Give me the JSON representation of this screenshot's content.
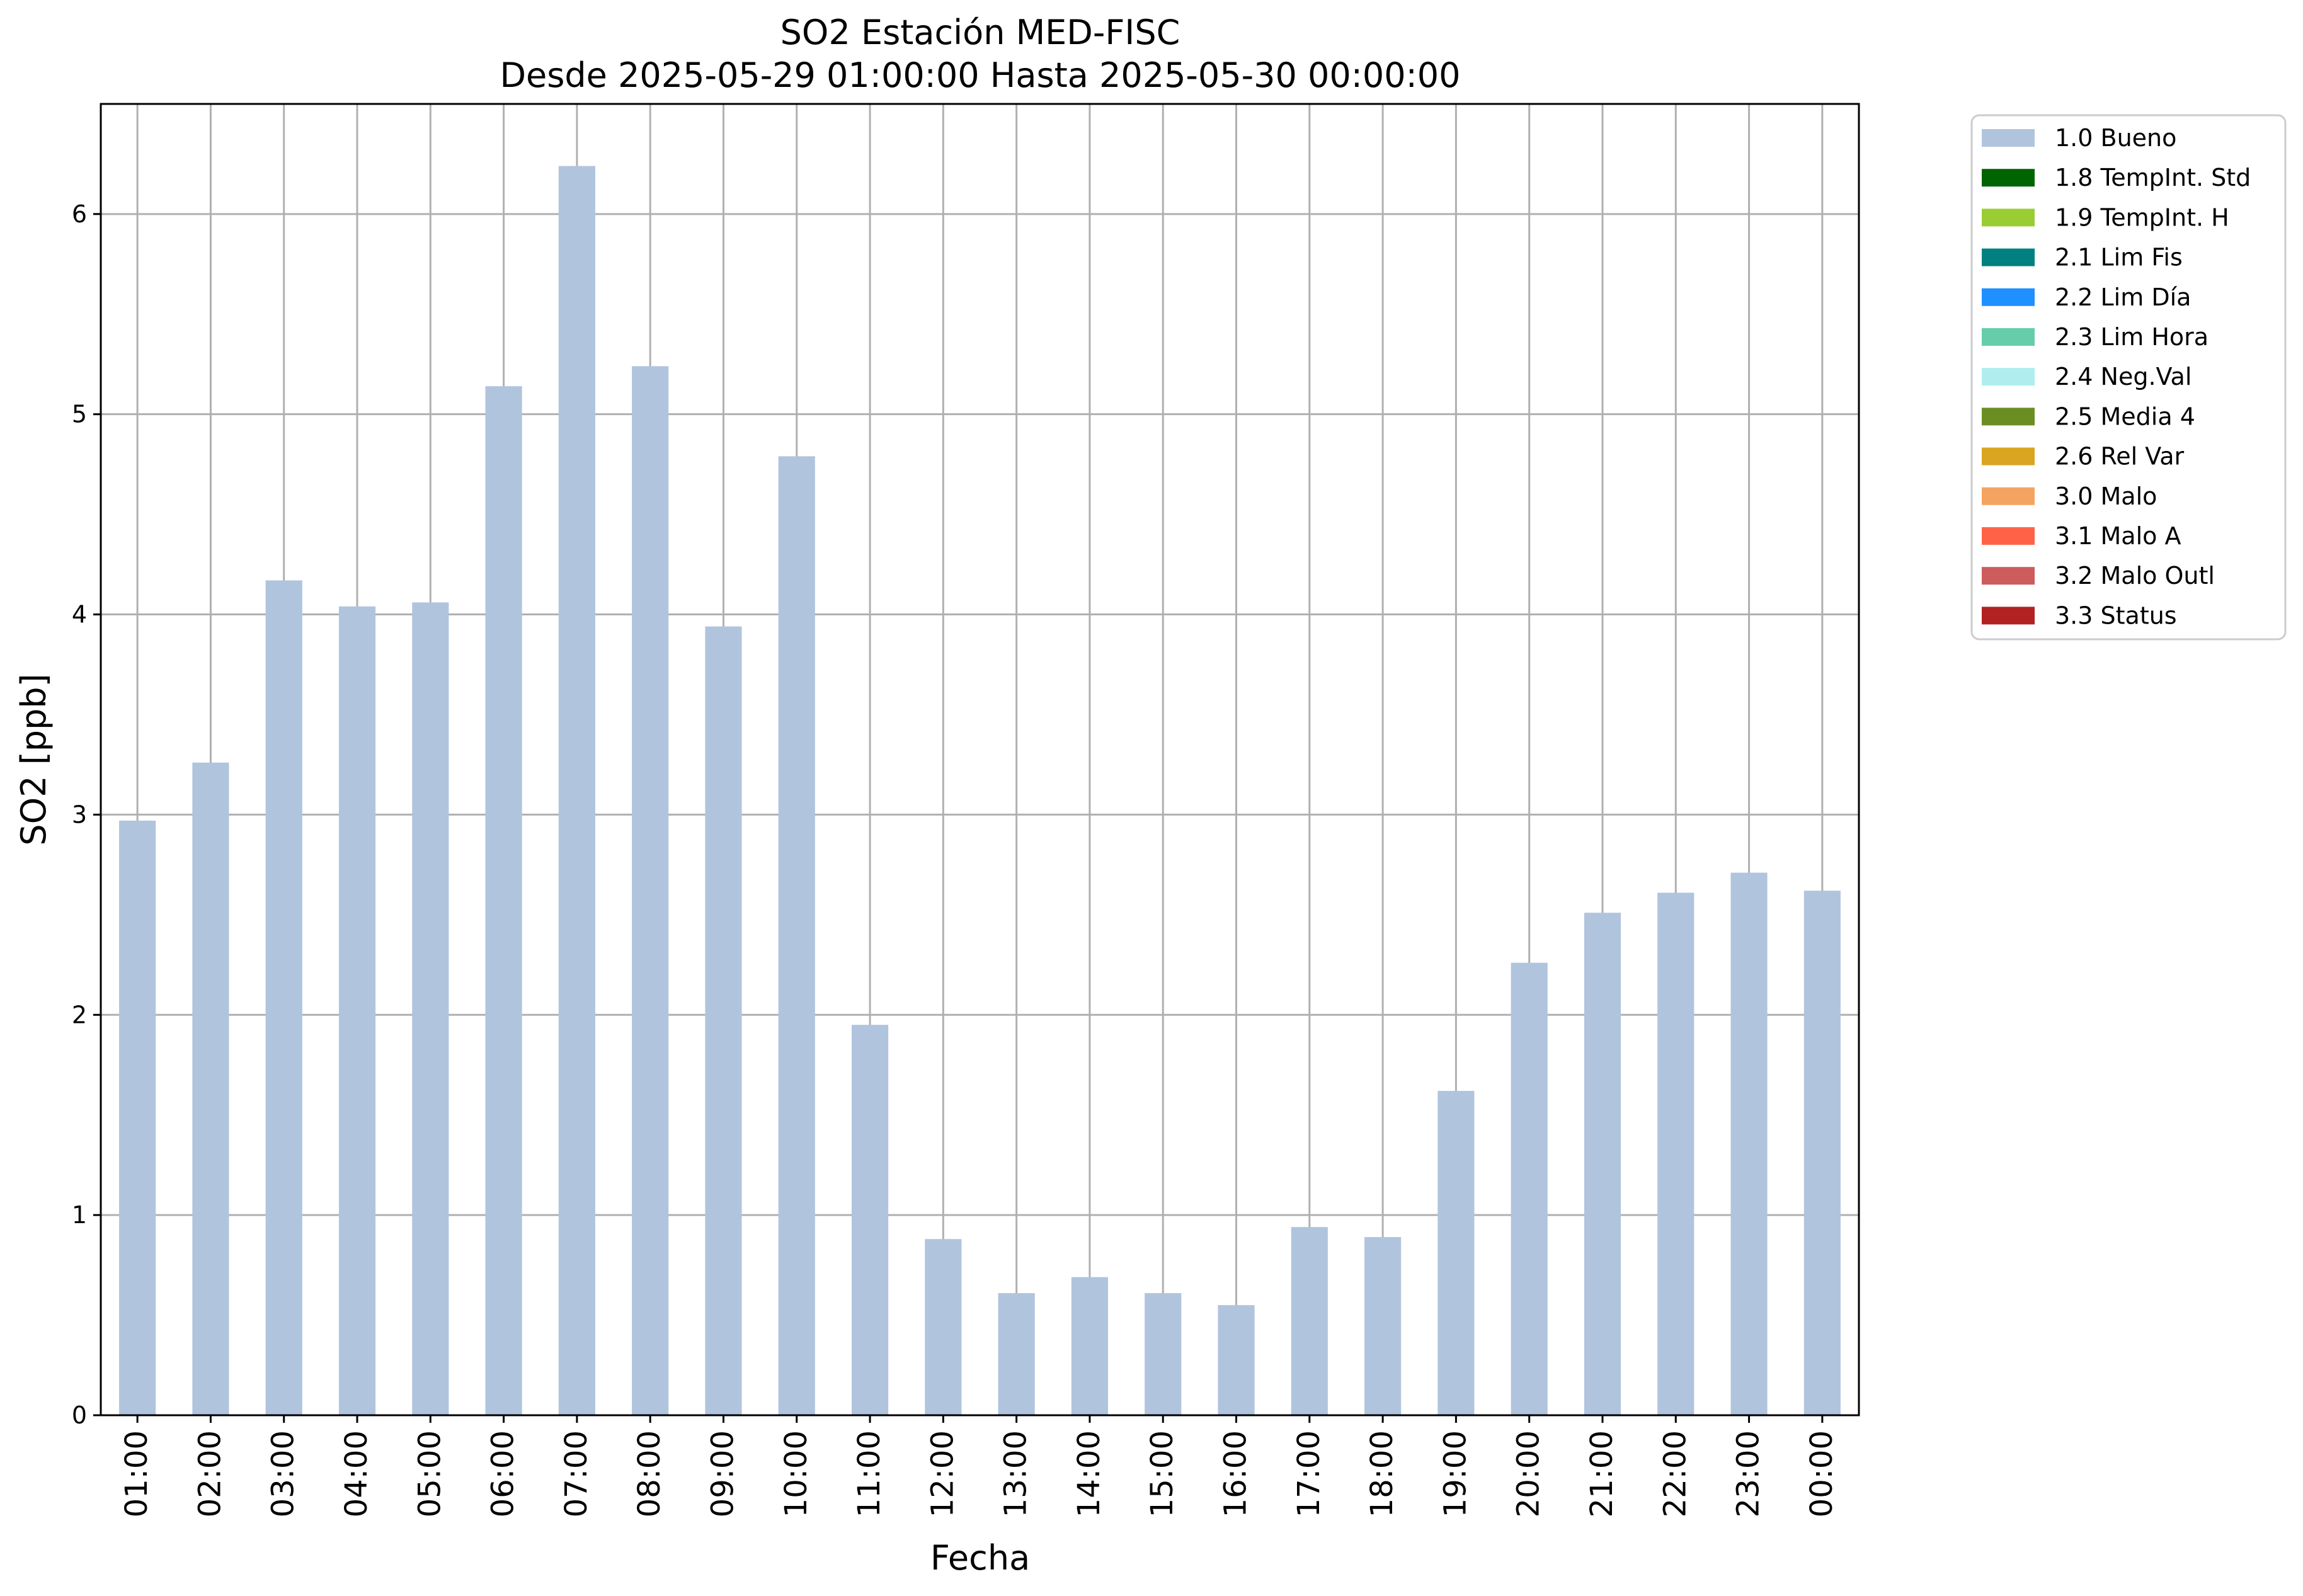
{
  "chart_data": {
    "type": "bar",
    "title": "SO2 Estación MED-FISC",
    "subtitle": "Desde 2025-05-29 01:00:00 Hasta 2025-05-30 00:00:00",
    "xlabel": "Fecha",
    "ylabel": "SO2 [ppb]",
    "ylim": [
      0,
      6.55
    ],
    "yticks": [
      0,
      1,
      2,
      3,
      4,
      5,
      6
    ],
    "grid": true,
    "legend_position": "outside-top-right",
    "categories": [
      "01:00",
      "02:00",
      "03:00",
      "04:00",
      "05:00",
      "06:00",
      "07:00",
      "08:00",
      "09:00",
      "10:00",
      "11:00",
      "12:00",
      "13:00",
      "14:00",
      "15:00",
      "16:00",
      "17:00",
      "18:00",
      "19:00",
      "20:00",
      "21:00",
      "22:00",
      "23:00",
      "00:00"
    ],
    "series": [
      {
        "name": "1.0 Bueno",
        "color": "#b0c4de",
        "values": [
          2.97,
          3.26,
          4.17,
          4.04,
          4.06,
          5.14,
          6.24,
          5.24,
          3.94,
          4.79,
          1.95,
          0.88,
          0.61,
          0.69,
          0.61,
          0.55,
          0.94,
          0.89,
          1.62,
          2.26,
          2.51,
          2.61,
          2.71,
          2.62
        ]
      }
    ],
    "legend": [
      {
        "label": "1.0 Bueno",
        "color": "#b0c4de"
      },
      {
        "label": "1.8 TempInt. Std",
        "color": "#006400"
      },
      {
        "label": "1.9 TempInt. H",
        "color": "#9acd32"
      },
      {
        "label": "2.1 Lim Fis",
        "color": "#008080"
      },
      {
        "label": "2.2 Lim Día",
        "color": "#1e90ff"
      },
      {
        "label": "2.3 Lim Hora",
        "color": "#66cdaa"
      },
      {
        "label": "2.4 Neg.Val",
        "color": "#afeeee"
      },
      {
        "label": "2.5 Media 4",
        "color": "#6b8e23"
      },
      {
        "label": "2.6 Rel Var",
        "color": "#daa520"
      },
      {
        "label": "3.0 Malo",
        "color": "#f4a460"
      },
      {
        "label": "3.1 Malo A",
        "color": "#ff6347"
      },
      {
        "label": "3.2 Malo Outl",
        "color": "#cd5c5c"
      },
      {
        "label": "3.3 Status",
        "color": "#b22222"
      }
    ]
  }
}
